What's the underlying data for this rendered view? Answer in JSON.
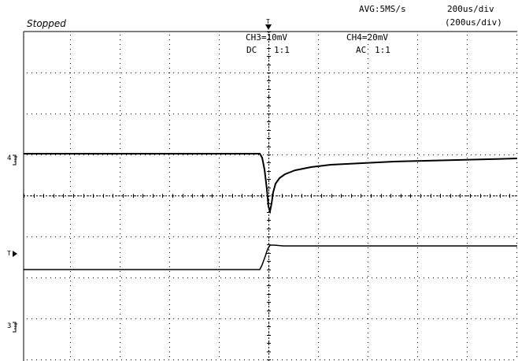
{
  "status": "Stopped",
  "acquisition": "AVG:5MS/s",
  "timebase": "200us/div",
  "timebase_paren": "(200us/div)",
  "trigger_label": "T",
  "channels": [
    {
      "scale": "CH3=10mV",
      "coupling": "DC",
      "probe": "1:1",
      "marker": "3"
    },
    {
      "scale": "CH4=20mV",
      "coupling": "AC",
      "probe": "1:1",
      "marker": "4"
    }
  ],
  "trace_color": "#000000",
  "grid_color": "#000000"
}
